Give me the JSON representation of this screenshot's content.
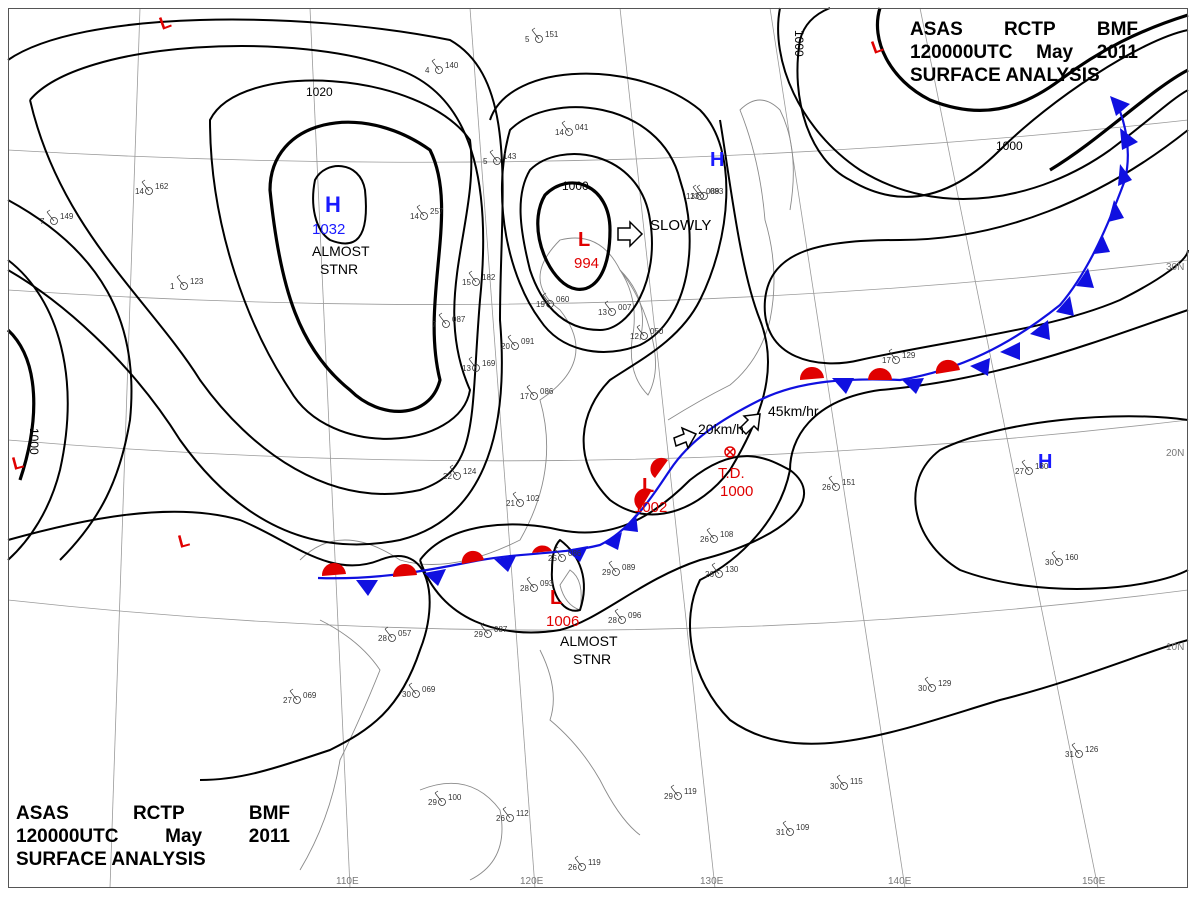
{
  "title": {
    "agency": "ASAS",
    "station": "RCTP",
    "code": "BMF",
    "time": "120000UTC",
    "month": "May",
    "year": "2011",
    "product": "SURFACE ANALYSIS"
  },
  "isobar_labels": [
    "1020",
    "1000",
    "1000",
    "1000",
    "1000"
  ],
  "pressure_systems": [
    {
      "type": "H",
      "value": "1032",
      "note": "ALMOST STNR",
      "color": "#1a1aff"
    },
    {
      "type": "L",
      "value": "994",
      "note": "SLOWLY",
      "color": "#e00000"
    },
    {
      "type": "L",
      "value": "1006",
      "note": "ALMOST STNR",
      "color": "#e00000"
    },
    {
      "type": "L",
      "value": "1002",
      "note": "20km/h",
      "color": "#e00000"
    },
    {
      "type": "T.D.",
      "value": "1000",
      "note": "45km/hr",
      "color": "#e00000"
    },
    {
      "type": "H",
      "value": "",
      "note": "",
      "color": "#1a1aff"
    },
    {
      "type": "H",
      "value": "",
      "note": "",
      "color": "#1a1aff"
    },
    {
      "type": "L",
      "value": "",
      "note": "",
      "color": "#e00000"
    },
    {
      "type": "L",
      "value": "",
      "note": "",
      "color": "#e00000"
    },
    {
      "type": "L",
      "value": "",
      "note": "",
      "color": "#e00000"
    },
    {
      "type": "L",
      "value": "",
      "note": "",
      "color": "#e00000"
    }
  ],
  "longitude_labels": [
    "110E",
    "120E",
    "130E",
    "140E",
    "150E"
  ],
  "latitude_labels": [
    "30N",
    "20N",
    "10N"
  ],
  "front": {
    "type": "stationary",
    "warm_color": "#e00000",
    "cold_color": "#1010e0"
  },
  "station_plots": [
    [
      "14",
      "162"
    ],
    [
      "7",
      "149"
    ],
    [
      "1",
      "123"
    ],
    [
      "5",
      "151"
    ],
    [
      "4",
      "140"
    ],
    [
      "5",
      "143"
    ],
    [
      "14",
      "041"
    ],
    [
      "13",
      "083"
    ],
    [
      "12",
      "050"
    ],
    [
      "17",
      "086"
    ],
    [
      "7",
      "087"
    ],
    [
      "13",
      "169"
    ],
    [
      "22",
      "124"
    ],
    [
      "21",
      "102"
    ],
    [
      "25",
      "086"
    ],
    [
      "28",
      "093"
    ],
    [
      "29",
      "087"
    ],
    [
      "28",
      "096"
    ],
    [
      "28",
      "057"
    ],
    [
      "30",
      "069"
    ],
    [
      "27",
      "069"
    ],
    [
      "26",
      "108"
    ],
    [
      "26",
      "130"
    ],
    [
      "29",
      "089"
    ],
    [
      "26",
      "151"
    ],
    [
      "27",
      "180"
    ],
    [
      "30",
      "160"
    ],
    [
      "30",
      "129"
    ],
    [
      "29",
      "100"
    ],
    [
      "26",
      "112"
    ],
    [
      "26",
      "119"
    ],
    [
      "31",
      "109"
    ],
    [
      "30",
      "115"
    ],
    [
      "29",
      "119"
    ],
    [
      "31",
      "126"
    ],
    [
      "17",
      "129"
    ],
    [
      "13",
      "089"
    ],
    [
      "15",
      "182"
    ],
    [
      "19",
      "060"
    ],
    [
      "20",
      "091"
    ],
    [
      "13",
      "007"
    ],
    [
      "14",
      "257"
    ]
  ]
}
